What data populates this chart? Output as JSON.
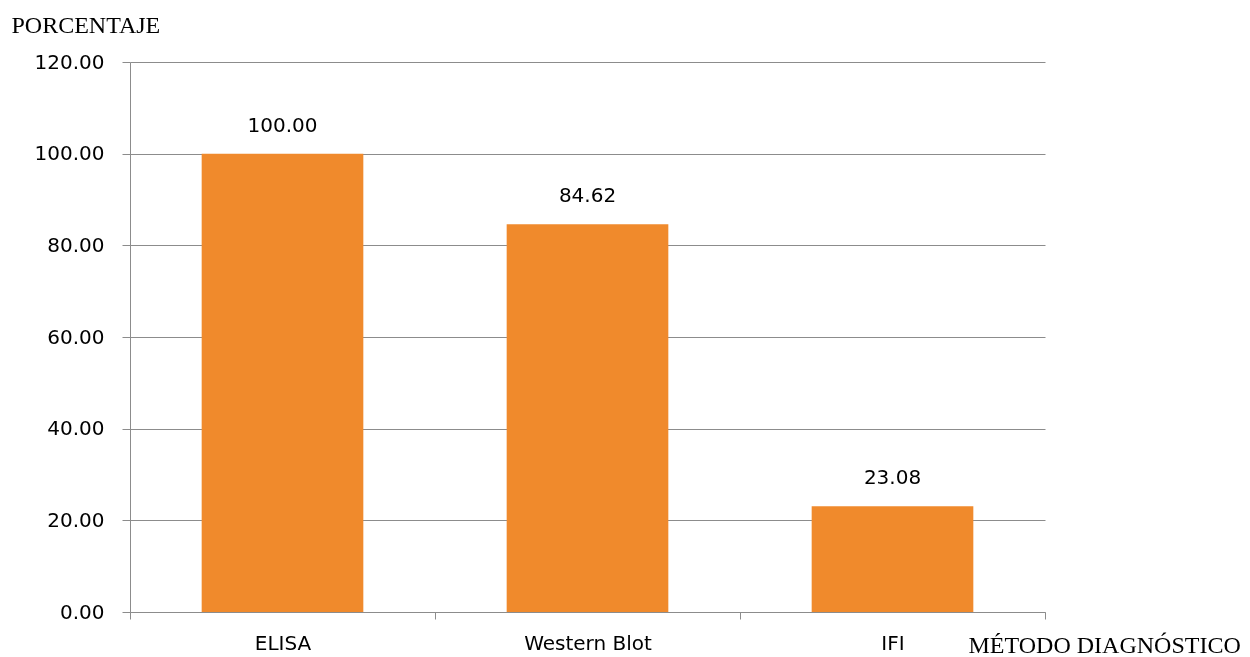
{
  "chart_data": {
    "type": "bar",
    "xlabel": "MÉTODO DIAGNÓSTICO",
    "ylabel": "PORCENTAJE",
    "categories": [
      "ELISA",
      "Western Blot",
      "IFI"
    ],
    "values": [
      100,
      84.62,
      23.08
    ],
    "value_labels": [
      "100.00",
      "84.62",
      "23.08"
    ],
    "color": "#f08a2c",
    "ylim": [
      0,
      120
    ],
    "yticks": [
      {
        "value": 0,
        "label": "0.00"
      },
      {
        "value": 20,
        "label": "20.00"
      },
      {
        "value": 40,
        "label": "40.00"
      },
      {
        "value": 60,
        "label": "60.00"
      },
      {
        "value": 80,
        "label": "80.00"
      },
      {
        "value": 100,
        "label": "100.00"
      },
      {
        "value": 120,
        "label": "120.00"
      }
    ],
    "grid": "y"
  }
}
